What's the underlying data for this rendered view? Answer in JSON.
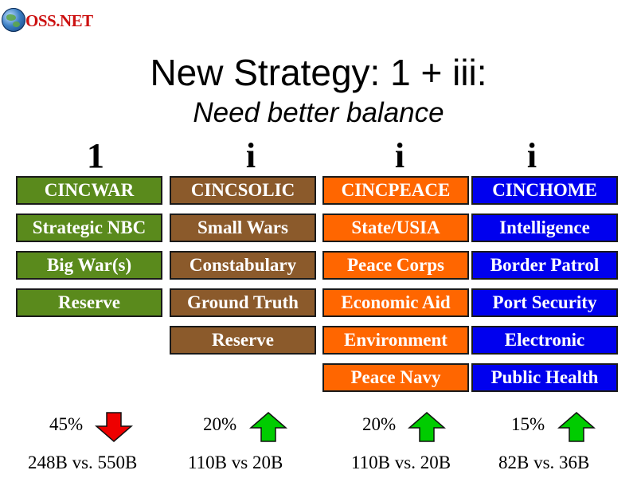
{
  "logo": {
    "text": "OSS.NET",
    "icon": "globe-icon"
  },
  "title": "New Strategy: 1 + iii:",
  "subtitle": "Need better balance",
  "colors": {
    "green": "#5a8a1c",
    "brown": "#8b5a2b",
    "orange": "#ff6600",
    "blue": "#0000ee",
    "arrow_up": "#00cc00",
    "arrow_down": "#ee0000"
  },
  "columns": [
    {
      "head": "1",
      "items": [
        "CINCWAR",
        "Strategic NBC",
        "Big War(s)",
        "Reserve"
      ],
      "percent": "45%",
      "trend": "down",
      "amount": "248B vs. 550B"
    },
    {
      "head": "i",
      "items": [
        "CINCSOLIC",
        "Small Wars",
        "Constabulary",
        "Ground Truth",
        "Reserve"
      ],
      "percent": "20%",
      "trend": "up",
      "amount": "110B vs 20B"
    },
    {
      "head": "i",
      "items": [
        "CINCPEACE",
        "State/USIA",
        "Peace Corps",
        "Economic Aid",
        "Environment",
        "Peace Navy"
      ],
      "percent": "20%",
      "trend": "up",
      "amount": "110B vs. 20B"
    },
    {
      "head": "i",
      "items": [
        "CINCHOME",
        "Intelligence",
        "Border Patrol",
        "Port Security",
        "Electronic",
        "Public Health"
      ],
      "percent": "15%",
      "trend": "up",
      "amount": "82B vs. 36B"
    }
  ]
}
